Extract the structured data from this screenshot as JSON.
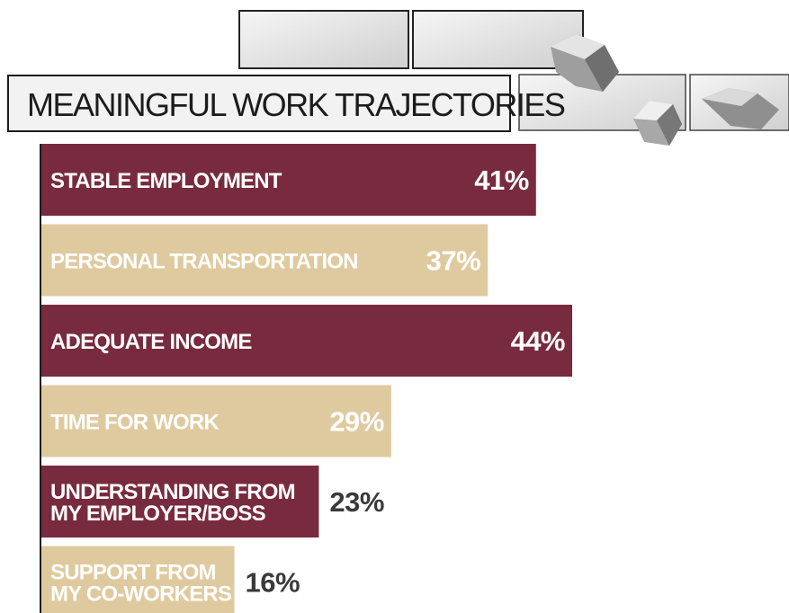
{
  "chart_data": {
    "type": "bar",
    "orientation": "horizontal",
    "title": "MEANINGFUL WORK TRAJECTORIES",
    "categories": [
      "STABLE EMPLOYMENT",
      "PERSONAL TRANSPORTATION",
      "ADEQUATE INCOME",
      "TIME FOR WORK",
      "UNDERSTANDING FROM MY EMPLOYER/BOSS",
      "SUPPORT FROM MY CO-WORKERS"
    ],
    "label_lines": [
      [
        "STABLE EMPLOYMENT"
      ],
      [
        "PERSONAL TRANSPORTATION"
      ],
      [
        "ADEQUATE INCOME"
      ],
      [
        "TIME FOR WORK"
      ],
      [
        "UNDERSTANDING FROM",
        "MY EMPLOYER/BOSS"
      ],
      [
        "SUPPORT FROM",
        "MY CO-WORKERS"
      ]
    ],
    "values": [
      41,
      37,
      44,
      29,
      23,
      16
    ],
    "value_labels": [
      "41%",
      "37%",
      "44%",
      "29%",
      "23%",
      "16%"
    ],
    "xlim": [
      0,
      44
    ],
    "grid": false,
    "legend": "none",
    "colors": {
      "maroon": "#782b3e",
      "tan": "#dfca9f",
      "maroon_value_text": "#ffffff",
      "tan_value_text": "#ffffff",
      "outside_value_text": "#3a3a3a",
      "maroon_label_text": "#ffffff",
      "tan_label_text": "#ffffff"
    },
    "bar_colors": [
      "maroon",
      "tan",
      "maroon",
      "tan",
      "maroon",
      "tan"
    ]
  }
}
